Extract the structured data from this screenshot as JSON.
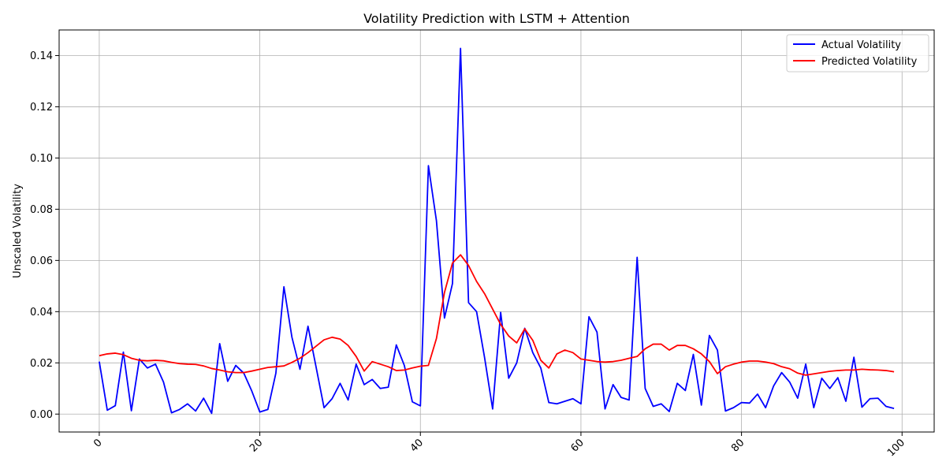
{
  "chart_data": {
    "type": "line",
    "title": "Volatility Prediction with LSTM + Attention",
    "xlabel": "",
    "ylabel": "Unscaled Volatility",
    "xlim": [
      -5,
      104
    ],
    "ylim": [
      -0.007,
      0.15
    ],
    "x_ticks": [
      0,
      20,
      40,
      60,
      80,
      100
    ],
    "y_ticks": [
      0.0,
      0.02,
      0.04,
      0.06,
      0.08,
      0.1,
      0.12,
      0.14
    ],
    "y_tick_labels": [
      "0.00",
      "0.02",
      "0.04",
      "0.06",
      "0.08",
      "0.10",
      "0.12",
      "0.14"
    ],
    "x_tick_rotation": 45,
    "grid": true,
    "legend_position": "top-right",
    "series": [
      {
        "name": "Actual Volatility",
        "color": "#0000ff",
        "values": [
          0.0205,
          0.0015,
          0.0033,
          0.0242,
          0.0013,
          0.0215,
          0.018,
          0.0195,
          0.0125,
          0.0005,
          0.0018,
          0.004,
          0.0012,
          0.0062,
          0.0003,
          0.0275,
          0.0128,
          0.019,
          0.016,
          0.009,
          0.0008,
          0.0018,
          0.016,
          0.0497,
          0.03,
          0.0175,
          0.0343,
          0.0185,
          0.0025,
          0.006,
          0.012,
          0.0055,
          0.0195,
          0.0115,
          0.0135,
          0.01,
          0.0105,
          0.027,
          0.019,
          0.0048,
          0.0032,
          0.097,
          0.0755,
          0.0375,
          0.051,
          0.1428,
          0.0435,
          0.04,
          0.022,
          0.002,
          0.0397,
          0.014,
          0.02,
          0.0335,
          0.024,
          0.018,
          0.0045,
          0.004,
          0.005,
          0.006,
          0.004,
          0.038,
          0.032,
          0.002,
          0.0115,
          0.0065,
          0.0055,
          0.0612,
          0.01,
          0.003,
          0.004,
          0.001,
          0.012,
          0.0092,
          0.0233,
          0.0035,
          0.0307,
          0.025,
          0.0012,
          0.0025,
          0.0045,
          0.0043,
          0.0078,
          0.0025,
          0.011,
          0.0162,
          0.0125,
          0.0062,
          0.0195,
          0.0025,
          0.014,
          0.01,
          0.0142,
          0.005,
          0.0222,
          0.0027,
          0.006,
          0.0062,
          0.003,
          0.0022
        ]
      },
      {
        "name": "Predicted Volatility",
        "color": "#ff0000",
        "values": [
          0.0228,
          0.0235,
          0.0238,
          0.0232,
          0.0218,
          0.021,
          0.0208,
          0.021,
          0.0208,
          0.0202,
          0.0197,
          0.0195,
          0.0194,
          0.0188,
          0.0178,
          0.0172,
          0.0165,
          0.0162,
          0.0162,
          0.0168,
          0.0175,
          0.0182,
          0.0185,
          0.0188,
          0.0202,
          0.0218,
          0.024,
          0.0265,
          0.029,
          0.03,
          0.0293,
          0.0268,
          0.0225,
          0.0168,
          0.0205,
          0.0195,
          0.0185,
          0.017,
          0.0172,
          0.018,
          0.0187,
          0.019,
          0.0295,
          0.0475,
          0.059,
          0.0622,
          0.058,
          0.0518,
          0.047,
          0.041,
          0.035,
          0.0305,
          0.0278,
          0.0333,
          0.0288,
          0.021,
          0.018,
          0.0235,
          0.025,
          0.024,
          0.0215,
          0.021,
          0.0205,
          0.0203,
          0.0205,
          0.021,
          0.0218,
          0.0225,
          0.0255,
          0.0273,
          0.0273,
          0.025,
          0.0268,
          0.0268,
          0.0255,
          0.0235,
          0.0205,
          0.0158,
          0.0185,
          0.0195,
          0.0203,
          0.0207,
          0.0207,
          0.0203,
          0.0197,
          0.0185,
          0.0177,
          0.016,
          0.0152,
          0.0157,
          0.0162,
          0.0167,
          0.017,
          0.0172,
          0.0172,
          0.0175,
          0.0173,
          0.0172,
          0.017,
          0.0165
        ]
      }
    ]
  }
}
